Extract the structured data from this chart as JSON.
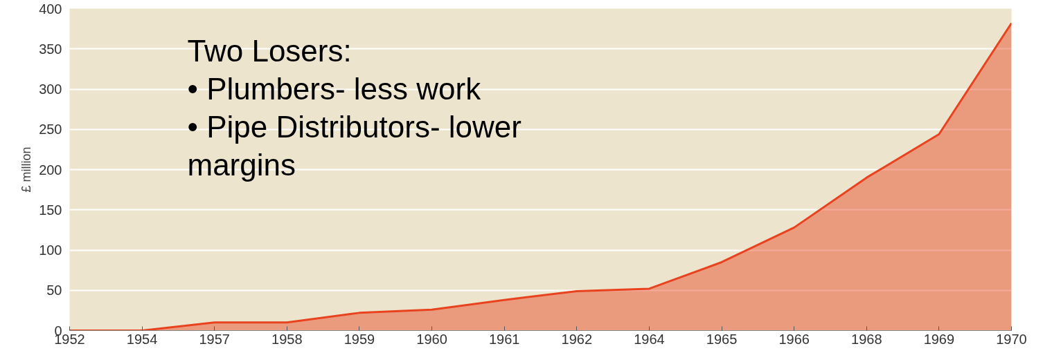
{
  "chart_data": {
    "type": "area",
    "ylabel": "£ million",
    "categories": [
      "1952",
      "1954",
      "1957",
      "1958",
      "1959",
      "1960",
      "1961",
      "1962",
      "1964",
      "1965",
      "1966",
      "1968",
      "1969",
      "1970"
    ],
    "series": [
      {
        "color": "#e8421f",
        "values": [
          0,
          0,
          10,
          10,
          22,
          26,
          38,
          49,
          52,
          85,
          128,
          190,
          244,
          382
        ]
      }
    ],
    "ylim": [
      0,
      400
    ],
    "yticks": [
      0,
      50,
      100,
      150,
      200,
      250,
      300,
      350,
      400
    ],
    "grid": "y",
    "annotations": [
      "Two Losers:",
      "•   Plumbers- less work",
      "•    Pipe Distributors- lower margins"
    ]
  }
}
